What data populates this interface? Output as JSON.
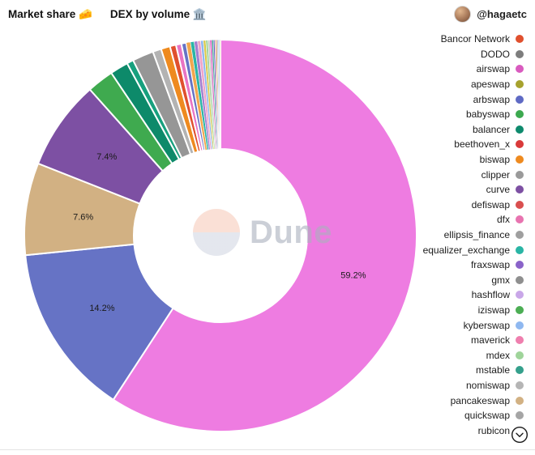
{
  "header": {
    "title_left": "Market share 🧀",
    "title_right": "DEX by volume 🏛️",
    "attribution": "@hagaetc"
  },
  "watermark": {
    "text": "Dune"
  },
  "chart_data": {
    "type": "pie",
    "donut": true,
    "title": "Market share 🧀 DEX by volume 🏛️",
    "unit": "%",
    "legend_position": "right",
    "labels_shown": [
      "59.2%",
      "14.2%",
      "7.6%",
      "7.4%"
    ],
    "slices": [
      {
        "label": "59.2%",
        "value": 59.2,
        "color": "#ee7ce1"
      },
      {
        "label": "14.2%",
        "value": 14.2,
        "color": "#6673c5"
      },
      {
        "label": "7.6%",
        "value": 7.6,
        "color": "#d2b183"
      },
      {
        "label": "7.4%",
        "value": 7.4,
        "color": "#7d50a3"
      },
      {
        "label": "",
        "value": 2.2,
        "color": "#3faa4f"
      },
      {
        "label": "",
        "value": 1.5,
        "color": "#0d8a6a"
      },
      {
        "label": "",
        "value": 0.55,
        "color": "#17a07e"
      },
      {
        "label": "",
        "value": 1.75,
        "color": "#969696"
      },
      {
        "label": "",
        "value": 0.7,
        "color": "#b3b3b3"
      },
      {
        "label": "",
        "value": 0.75,
        "color": "#ee8a1f"
      },
      {
        "label": "",
        "value": 0.5,
        "color": "#e0502e"
      },
      {
        "label": "",
        "value": 0.45,
        "color": "#e874c3"
      },
      {
        "label": "",
        "value": 0.4,
        "color": "#6673c5"
      },
      {
        "label": "",
        "value": 0.35,
        "color": "#f2a64e"
      },
      {
        "label": "",
        "value": 0.3,
        "color": "#2ab5a5"
      },
      {
        "label": "",
        "value": 0.28,
        "color": "#a27fd0"
      },
      {
        "label": "",
        "value": 0.25,
        "color": "#f0a3c8"
      },
      {
        "label": "",
        "value": 0.22,
        "color": "#8fb8f0"
      },
      {
        "label": "",
        "value": 0.2,
        "color": "#d9c94a"
      },
      {
        "label": "",
        "value": 0.18,
        "color": "#9fd49a"
      },
      {
        "label": "",
        "value": 0.16,
        "color": "#c9c9c9"
      },
      {
        "label": "",
        "value": 0.15,
        "color": "#d95bbf"
      },
      {
        "label": "",
        "value": 0.13,
        "color": "#35a08c"
      },
      {
        "label": "",
        "value": 0.12,
        "color": "#5f6ac4"
      },
      {
        "label": "",
        "value": 0.1,
        "color": "#f08080"
      },
      {
        "label": "",
        "value": 0.09,
        "color": "#a7a22e"
      },
      {
        "label": "",
        "value": 0.09,
        "color": "#c9a7e8"
      },
      {
        "label": "",
        "value": 0.09,
        "color": "#74c0e8"
      },
      {
        "label": "",
        "value": 0.09,
        "color": "#e8d5c0"
      }
    ]
  },
  "legend": {
    "items": [
      {
        "name": "Bancor Network",
        "color": "#e0502e"
      },
      {
        "name": "DODO",
        "color": "#7d7d7d"
      },
      {
        "name": "airswap",
        "color": "#d95bbf"
      },
      {
        "name": "apeswap",
        "color": "#a7a22e"
      },
      {
        "name": "arbswap",
        "color": "#5f6ac4"
      },
      {
        "name": "babyswap",
        "color": "#3ca94f"
      },
      {
        "name": "balancer",
        "color": "#0e8a6d"
      },
      {
        "name": "beethoven_x",
        "color": "#d93a3a"
      },
      {
        "name": "biswap",
        "color": "#ee8a1f"
      },
      {
        "name": "clipper",
        "color": "#9a9a9a"
      },
      {
        "name": "curve",
        "color": "#7d50a3"
      },
      {
        "name": "defiswap",
        "color": "#d94f4f"
      },
      {
        "name": "dfx",
        "color": "#e874b0"
      },
      {
        "name": "ellipsis_finance",
        "color": "#9f9f9f"
      },
      {
        "name": "equalizer_exchange",
        "color": "#2ab5a5"
      },
      {
        "name": "fraxswap",
        "color": "#8a63c9"
      },
      {
        "name": "gmx",
        "color": "#8f8f8f"
      },
      {
        "name": "hashflow",
        "color": "#c9a7e8"
      },
      {
        "name": "iziswap",
        "color": "#4cae54"
      },
      {
        "name": "kyberswap",
        "color": "#8fb8f0"
      },
      {
        "name": "maverick",
        "color": "#ef7fae"
      },
      {
        "name": "mdex",
        "color": "#9fd49a"
      },
      {
        "name": "mstable",
        "color": "#35a08c"
      },
      {
        "name": "nomiswap",
        "color": "#b5b5b5"
      },
      {
        "name": "pancakeswap",
        "color": "#d2b183"
      },
      {
        "name": "quickswap",
        "color": "#a5a5a5"
      },
      {
        "name": "rubicon",
        "color": "#5f6ac4"
      }
    ]
  }
}
